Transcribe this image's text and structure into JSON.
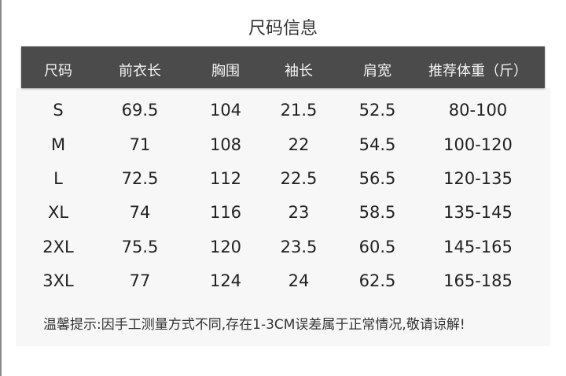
{
  "title": "尺码信息",
  "header": [
    "尺码",
    "前衣长",
    "胸围",
    "袖长",
    "肩宽",
    "推荐体重（斤）"
  ],
  "rows": [
    [
      "S",
      "69.5",
      "104",
      "21.5",
      "52.5",
      "80-100"
    ],
    [
      "M",
      "71",
      "108",
      "22",
      "54.5",
      "100-120"
    ],
    [
      "L",
      "72.5",
      "112",
      "22.5",
      "56.5",
      "120-135"
    ],
    [
      "XL",
      "74",
      "116",
      "23",
      "58.5",
      "135-145"
    ],
    [
      "2XL",
      "75.5",
      "120",
      "23.5",
      "60.5",
      "145-165"
    ],
    [
      "3XL",
      "77",
      "124",
      "24",
      "62.5",
      "165-185"
    ]
  ],
  "note": "温馨提示:因手工测量方式不同,存在1-3CM误差属于正常情况,敬请谅解!",
  "colors": {
    "header_bg": "#4b4b4b",
    "body_bg": "#f7f7f7"
  }
}
